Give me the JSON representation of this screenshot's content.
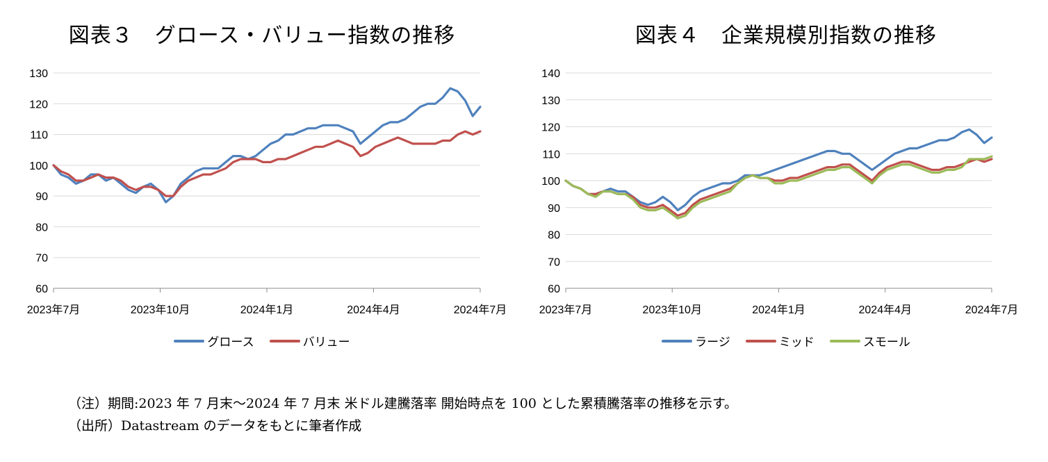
{
  "chart_data": [
    {
      "type": "line",
      "title": "図表３　グロース・バリュー指数の推移",
      "x_ticks": [
        "2023年7月",
        "2023年10月",
        "2024年1月",
        "2024年4月",
        "2024年7月"
      ],
      "ylim": [
        60,
        130
      ],
      "y_ticks": [
        "60",
        "70",
        "80",
        "90",
        "100",
        "110",
        "120",
        "130"
      ],
      "grid": "horizontal",
      "legend": "bottom",
      "series": [
        {
          "name": "グロース",
          "color": "#4F81BD",
          "values": [
            100,
            97,
            96,
            94,
            95,
            97,
            97,
            95,
            96,
            94,
            92,
            91,
            93,
            94,
            92,
            88,
            90,
            94,
            96,
            98,
            99,
            99,
            99,
            101,
            103,
            103,
            102,
            103,
            105,
            107,
            108,
            110,
            110,
            111,
            112,
            112,
            113,
            113,
            113,
            112,
            111,
            107,
            109,
            111,
            113,
            114,
            114,
            115,
            117,
            119,
            120,
            120,
            122,
            125,
            124,
            121,
            116,
            119
          ]
        },
        {
          "name": "バリュー",
          "color": "#C0504D",
          "values": [
            100,
            98,
            97,
            95,
            95,
            96,
            97,
            96,
            96,
            95,
            93,
            92,
            93,
            93,
            92,
            90,
            90,
            93,
            95,
            96,
            97,
            97,
            98,
            99,
            101,
            102,
            102,
            102,
            101,
            101,
            102,
            102,
            103,
            104,
            105,
            106,
            106,
            107,
            108,
            107,
            106,
            103,
            104,
            106,
            107,
            108,
            109,
            108,
            107,
            107,
            107,
            107,
            108,
            108,
            110,
            111,
            110,
            111
          ]
        }
      ]
    },
    {
      "type": "line",
      "title": "図表４　企業規模別指数の推移",
      "x_ticks": [
        "2023年7月",
        "2023年10月",
        "2024年1月",
        "2024年4月",
        "2024年7月"
      ],
      "ylim": [
        60,
        140
      ],
      "y_ticks": [
        "60",
        "70",
        "80",
        "90",
        "100",
        "110",
        "120",
        "130",
        "140"
      ],
      "grid": "horizontal",
      "legend": "bottom",
      "series": [
        {
          "name": "ラージ",
          "color": "#4F81BD",
          "values": [
            100,
            98,
            97,
            95,
            95,
            96,
            97,
            96,
            96,
            94,
            92,
            91,
            92,
            94,
            92,
            89,
            91,
            94,
            96,
            97,
            98,
            99,
            99,
            100,
            102,
            102,
            102,
            103,
            104,
            105,
            106,
            107,
            108,
            109,
            110,
            111,
            111,
            110,
            110,
            108,
            106,
            104,
            106,
            108,
            110,
            111,
            112,
            112,
            113,
            114,
            115,
            115,
            116,
            118,
            119,
            117,
            114,
            116
          ]
        },
        {
          "name": "ミッド",
          "color": "#C0504D",
          "values": [
            100,
            98,
            97,
            95,
            95,
            96,
            96,
            95,
            95,
            94,
            91,
            90,
            90,
            91,
            89,
            87,
            88,
            91,
            93,
            94,
            95,
            96,
            97,
            99,
            101,
            102,
            101,
            101,
            100,
            100,
            101,
            101,
            102,
            103,
            104,
            105,
            105,
            106,
            106,
            104,
            102,
            100,
            103,
            105,
            106,
            107,
            107,
            106,
            105,
            104,
            104,
            105,
            105,
            106,
            107,
            108,
            107,
            108
          ]
        },
        {
          "name": "スモール",
          "color": "#9BBB59",
          "values": [
            100,
            98,
            97,
            95,
            94,
            96,
            96,
            95,
            95,
            93,
            90,
            89,
            89,
            90,
            88,
            86,
            87,
            90,
            92,
            93,
            94,
            95,
            96,
            99,
            101,
            102,
            101,
            101,
            99,
            99,
            100,
            100,
            101,
            102,
            103,
            104,
            104,
            105,
            105,
            103,
            101,
            99,
            102,
            104,
            105,
            106,
            106,
            105,
            104,
            103,
            103,
            104,
            104,
            105,
            108,
            108,
            108,
            109
          ]
        }
      ]
    }
  ],
  "notes": {
    "line1": "（注）期間:2023 年 7 月末～2024 年 7 月末 米ドル建騰落率 開始時点を 100 とした累積騰落率の推移を示す。",
    "line2": "（出所）Datastream のデータをもとに筆者作成"
  }
}
